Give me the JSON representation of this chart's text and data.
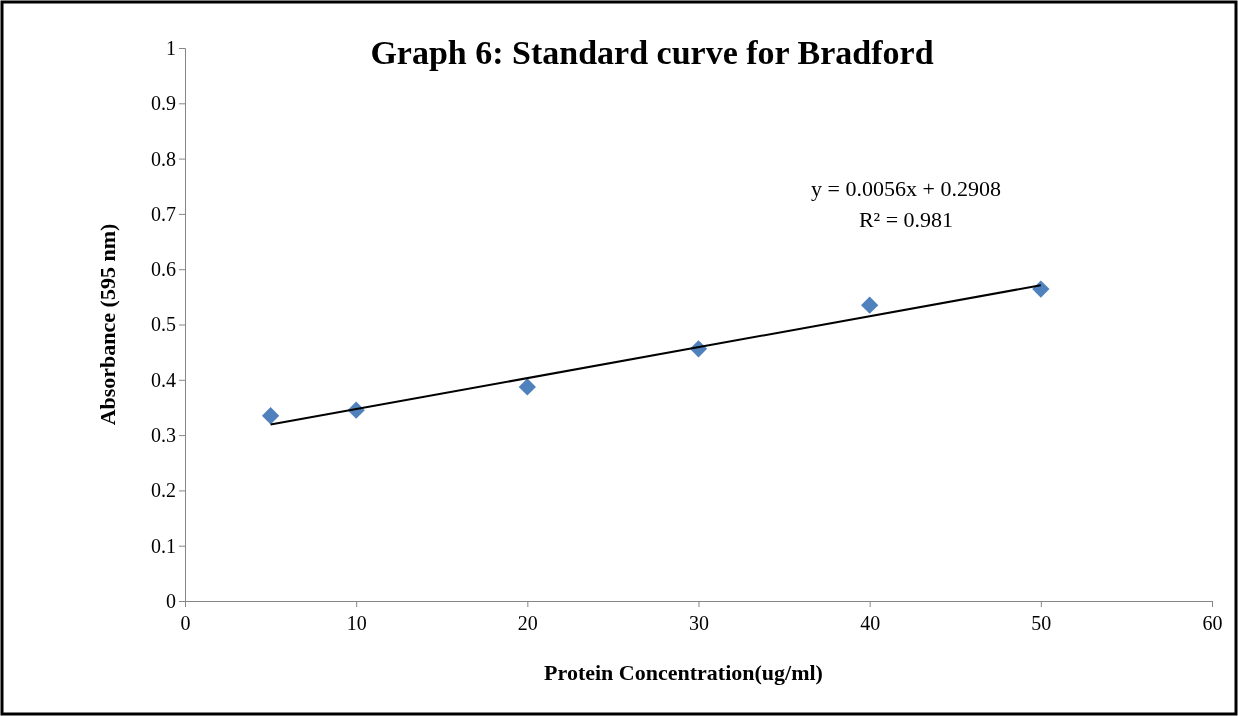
{
  "chart_data": {
    "type": "scatter",
    "title": "Graph 6: Standard  curve for Bradford",
    "xlabel": "Protein  Concentration(ug/ml)",
    "ylabel": "Absorbance (595 nm)",
    "annotations": [
      "y = 0.0056x + 0.2908",
      "R² = 0.981"
    ],
    "x": [
      5,
      10,
      20,
      30,
      40,
      50
    ],
    "series": [
      {
        "color": "#4f81bd",
        "marker": "diamond",
        "values": [
          0.335,
          0.345,
          0.387,
          0.456,
          0.535,
          0.564
        ]
      },
      {
        "type": "line",
        "color": "#000000",
        "marker": "none",
        "x": [
          5,
          50
        ],
        "values": [
          0.319,
          0.571
        ]
      }
    ],
    "xlim": [
      0,
      60
    ],
    "xticks": [
      0,
      10,
      20,
      30,
      40,
      50,
      60
    ],
    "ylim": [
      0,
      1
    ],
    "yticks": [
      0,
      0.1,
      0.2,
      0.3,
      0.4,
      0.5,
      0.6,
      0.7,
      0.8,
      0.9,
      1
    ]
  }
}
